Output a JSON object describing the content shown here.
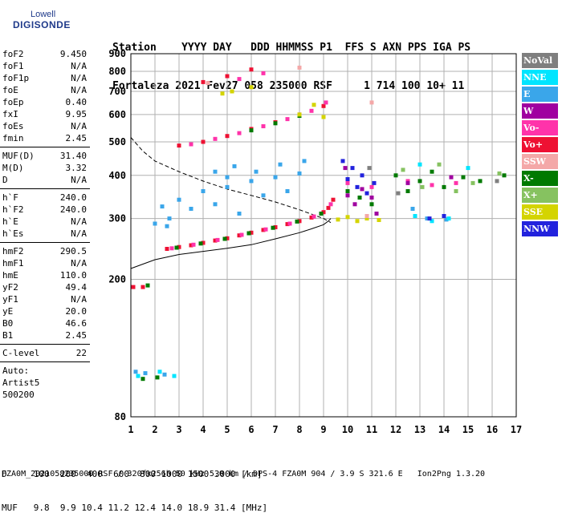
{
  "logo": {
    "line1": "Lowell",
    "line2": "DIGISONDE"
  },
  "header": {
    "row1": "Station    YYYY DAY   DDD HHMMSS P1  FFS S AXN PPS IGA PS",
    "row2": "Fortaleza 2021 Fev27 058 235000 RSF     1 714 100 10+ 11"
  },
  "params": {
    "group1": [
      {
        "k": "foF2",
        "v": "9.450"
      },
      {
        "k": "foF1",
        "v": "N/A"
      },
      {
        "k": "foF1p",
        "v": "N/A"
      },
      {
        "k": "foE",
        "v": "N/A"
      },
      {
        "k": "foEp",
        "v": "0.40"
      },
      {
        "k": "fxI",
        "v": "9.95"
      },
      {
        "k": "foEs",
        "v": "N/A"
      },
      {
        "k": "fmin",
        "v": "2.45"
      }
    ],
    "group2": [
      {
        "k": "MUF(D)",
        "v": "31.40"
      },
      {
        "k": "M(D)",
        "v": "3.32"
      },
      {
        "k": "D",
        "v": "N/A"
      }
    ],
    "group3": [
      {
        "k": "h`F",
        "v": "240.0"
      },
      {
        "k": "h`F2",
        "v": "240.0"
      },
      {
        "k": "h`E",
        "v": "N/A"
      },
      {
        "k": "h`Es",
        "v": "N/A"
      }
    ],
    "group4": [
      {
        "k": "hmF2",
        "v": "290.5"
      },
      {
        "k": "hmF1",
        "v": "N/A"
      },
      {
        "k": "hmE",
        "v": "110.0"
      },
      {
        "k": "yF2",
        "v": "49.4"
      },
      {
        "k": "yF1",
        "v": "N/A"
      },
      {
        "k": "yE",
        "v": "20.0"
      },
      {
        "k": "B0",
        "v": "46.6"
      },
      {
        "k": "B1",
        "v": "2.45"
      }
    ],
    "clevel": {
      "k": "C-level",
      "v": "22"
    },
    "auto": [
      "Auto:",
      "Artist5",
      "500200"
    ]
  },
  "legend": [
    {
      "label": "NoVal",
      "color": "#7f7f7f"
    },
    {
      "label": "NNE",
      "color": "#00e5ff"
    },
    {
      "label": "E",
      "color": "#3aa6ea"
    },
    {
      "label": "W",
      "color": "#a000a0"
    },
    {
      "label": "Vo-",
      "color": "#ff33aa"
    },
    {
      "label": "Vo+",
      "color": "#ee1133"
    },
    {
      "label": "SSW",
      "color": "#f4a8a8"
    },
    {
      "label": "X-",
      "color": "#007a00"
    },
    {
      "label": "X+",
      "color": "#86c260"
    },
    {
      "label": "SSE",
      "color": "#d4d400"
    },
    {
      "label": "NNW",
      "color": "#2222dd"
    }
  ],
  "bottom": {
    "row1": "D     100  200  400  600  800 1000 1500 3000 [km]",
    "row2": "MUF   9.8  9.9 10.4 11.2 12.4 14.0 18.9 31.4 [MHz]"
  },
  "footer": "FZA0M_2021058235000.RSF / 320fx256h 50 kHz 5.0 km / DPS-4 FZA0M 904 / 3.9 S 321.6 E   Ion2Png 1.3.20",
  "chart_data": {
    "type": "scatter",
    "xlim": [
      1,
      17
    ],
    "ylim": [
      80,
      900
    ],
    "y_scale": "log",
    "xticks": [
      1,
      2,
      3,
      4,
      5,
      6,
      7,
      8,
      9,
      10,
      11,
      12,
      13,
      14,
      15,
      16,
      17
    ],
    "yticks": [
      80,
      200,
      300,
      400,
      500,
      600,
      700,
      800,
      900
    ],
    "grid": true,
    "profile_dashed": [
      [
        1,
        515
      ],
      [
        1.5,
        470
      ],
      [
        2,
        440
      ],
      [
        3,
        410
      ],
      [
        4,
        385
      ],
      [
        5,
        365
      ],
      [
        6,
        350
      ],
      [
        7,
        335
      ],
      [
        8,
        318
      ],
      [
        9,
        300
      ],
      [
        9.3,
        292
      ]
    ],
    "profile_solid": [
      [
        1,
        215
      ],
      [
        2,
        228
      ],
      [
        3,
        236
      ],
      [
        4,
        241
      ],
      [
        5,
        246
      ],
      [
        6,
        252
      ],
      [
        7,
        262
      ],
      [
        8,
        273
      ],
      [
        8.5,
        280
      ],
      [
        9,
        288
      ],
      [
        9.2,
        295
      ],
      [
        9.3,
        300
      ]
    ],
    "series": [
      {
        "color": "#ee1133",
        "points": [
          [
            2.5,
            245
          ],
          [
            3,
            248
          ],
          [
            3.5,
            251
          ],
          [
            4,
            255
          ],
          [
            4.5,
            259
          ],
          [
            5,
            263
          ],
          [
            5.5,
            268
          ],
          [
            6,
            273
          ],
          [
            6.5,
            278
          ],
          [
            7,
            283
          ],
          [
            7.5,
            289
          ],
          [
            8,
            295
          ],
          [
            8.5,
            302
          ],
          [
            9,
            313
          ],
          [
            9.2,
            322
          ],
          [
            9.4,
            340
          ],
          [
            3,
            488
          ],
          [
            4,
            500
          ],
          [
            5,
            520
          ],
          [
            6,
            545
          ],
          [
            7,
            570
          ],
          [
            8,
            600
          ],
          [
            9,
            635
          ],
          [
            4,
            745
          ],
          [
            5,
            775
          ],
          [
            6,
            810
          ],
          [
            1.1,
            190
          ],
          [
            1.5,
            190
          ]
        ]
      },
      {
        "color": "#ff33aa",
        "points": [
          [
            2.7,
            246
          ],
          [
            3.6,
            252
          ],
          [
            4.6,
            260
          ],
          [
            5.6,
            269
          ],
          [
            6.6,
            279
          ],
          [
            7.6,
            290
          ],
          [
            8.6,
            304
          ],
          [
            9.3,
            330
          ],
          [
            10,
            380
          ],
          [
            11,
            370
          ],
          [
            12.5,
            385
          ],
          [
            13.5,
            375
          ],
          [
            14.5,
            380
          ],
          [
            3.5,
            492
          ],
          [
            4.5,
            510
          ],
          [
            5.5,
            530
          ],
          [
            6.5,
            555
          ],
          [
            7.5,
            582
          ],
          [
            8.5,
            615
          ],
          [
            9.1,
            650
          ],
          [
            6.5,
            790
          ],
          [
            5.5,
            760
          ]
        ]
      },
      {
        "color": "#007a00",
        "points": [
          [
            2.9,
            247
          ],
          [
            3.9,
            254
          ],
          [
            4.9,
            262
          ],
          [
            5.9,
            272
          ],
          [
            6.9,
            282
          ],
          [
            7.9,
            294
          ],
          [
            8.9,
            310
          ],
          [
            10,
            360
          ],
          [
            10.5,
            345
          ],
          [
            11,
            330
          ],
          [
            12,
            400
          ],
          [
            12.5,
            360
          ],
          [
            13,
            385
          ],
          [
            13.5,
            410
          ],
          [
            14,
            370
          ],
          [
            14.8,
            395
          ],
          [
            15.5,
            385
          ],
          [
            16.5,
            400
          ],
          [
            6,
            540
          ],
          [
            7,
            566
          ],
          [
            8,
            595
          ],
          [
            1.7,
            192
          ],
          [
            2.1,
            104
          ],
          [
            1.5,
            103
          ]
        ]
      },
      {
        "color": "#86c260",
        "points": [
          [
            12.3,
            415
          ],
          [
            13.1,
            370
          ],
          [
            13.8,
            430
          ],
          [
            14.5,
            360
          ],
          [
            15.2,
            380
          ],
          [
            16.3,
            405
          ]
        ]
      },
      {
        "color": "#3aa6ea",
        "points": [
          [
            2,
            290
          ],
          [
            2.3,
            325
          ],
          [
            2.6,
            300
          ],
          [
            3,
            340
          ],
          [
            3.5,
            320
          ],
          [
            4,
            360
          ],
          [
            4.5,
            330
          ],
          [
            5,
            370
          ],
          [
            5.5,
            310
          ],
          [
            6,
            385
          ],
          [
            6.5,
            350
          ],
          [
            7,
            395
          ],
          [
            7.5,
            360
          ],
          [
            8,
            405
          ],
          [
            2.5,
            285
          ],
          [
            1.2,
            108
          ],
          [
            1.6,
            107
          ],
          [
            2.4,
            106
          ],
          [
            13.3,
            300
          ],
          [
            12.7,
            320
          ],
          [
            14.1,
            298
          ],
          [
            4.5,
            410
          ],
          [
            5,
            395
          ],
          [
            5.3,
            425
          ],
          [
            6.2,
            410
          ],
          [
            7.2,
            430
          ],
          [
            8.2,
            440
          ]
        ]
      },
      {
        "color": "#00e5ff",
        "points": [
          [
            1.3,
            105
          ],
          [
            2.2,
            108
          ],
          [
            2.8,
            105
          ],
          [
            12.8,
            305
          ],
          [
            13.5,
            295
          ],
          [
            14.2,
            300
          ],
          [
            13,
            430
          ],
          [
            15,
            420
          ]
        ]
      },
      {
        "color": "#a000a0",
        "points": [
          [
            10,
            350
          ],
          [
            10.3,
            330
          ],
          [
            10.6,
            365
          ],
          [
            11,
            345
          ],
          [
            9.9,
            420
          ],
          [
            11.2,
            310
          ],
          [
            12.5,
            380
          ],
          [
            14.3,
            395
          ]
        ]
      },
      {
        "color": "#2222dd",
        "points": [
          [
            10,
            390
          ],
          [
            10.2,
            420
          ],
          [
            10.4,
            370
          ],
          [
            10.6,
            400
          ],
          [
            10.8,
            355
          ],
          [
            9.8,
            440
          ],
          [
            11.1,
            380
          ],
          [
            13.4,
            300
          ],
          [
            14,
            305
          ]
        ]
      },
      {
        "color": "#d4d400",
        "points": [
          [
            9.6,
            298
          ],
          [
            10,
            303
          ],
          [
            10.4,
            295
          ],
          [
            10.8,
            300
          ],
          [
            11.3,
            297
          ],
          [
            8,
            600
          ],
          [
            8.6,
            640
          ],
          [
            9,
            590
          ],
          [
            5.2,
            700
          ],
          [
            4.8,
            690
          ],
          [
            6,
            720
          ]
        ]
      },
      {
        "color": "#f4a8a8",
        "points": [
          [
            11,
            650
          ],
          [
            10.8,
            305
          ],
          [
            4.2,
            740
          ],
          [
            8,
            820
          ]
        ]
      },
      {
        "color": "#7f7f7f",
        "points": [
          [
            10.9,
            420
          ],
          [
            12.1,
            355
          ],
          [
            16.2,
            385
          ]
        ]
      }
    ]
  }
}
